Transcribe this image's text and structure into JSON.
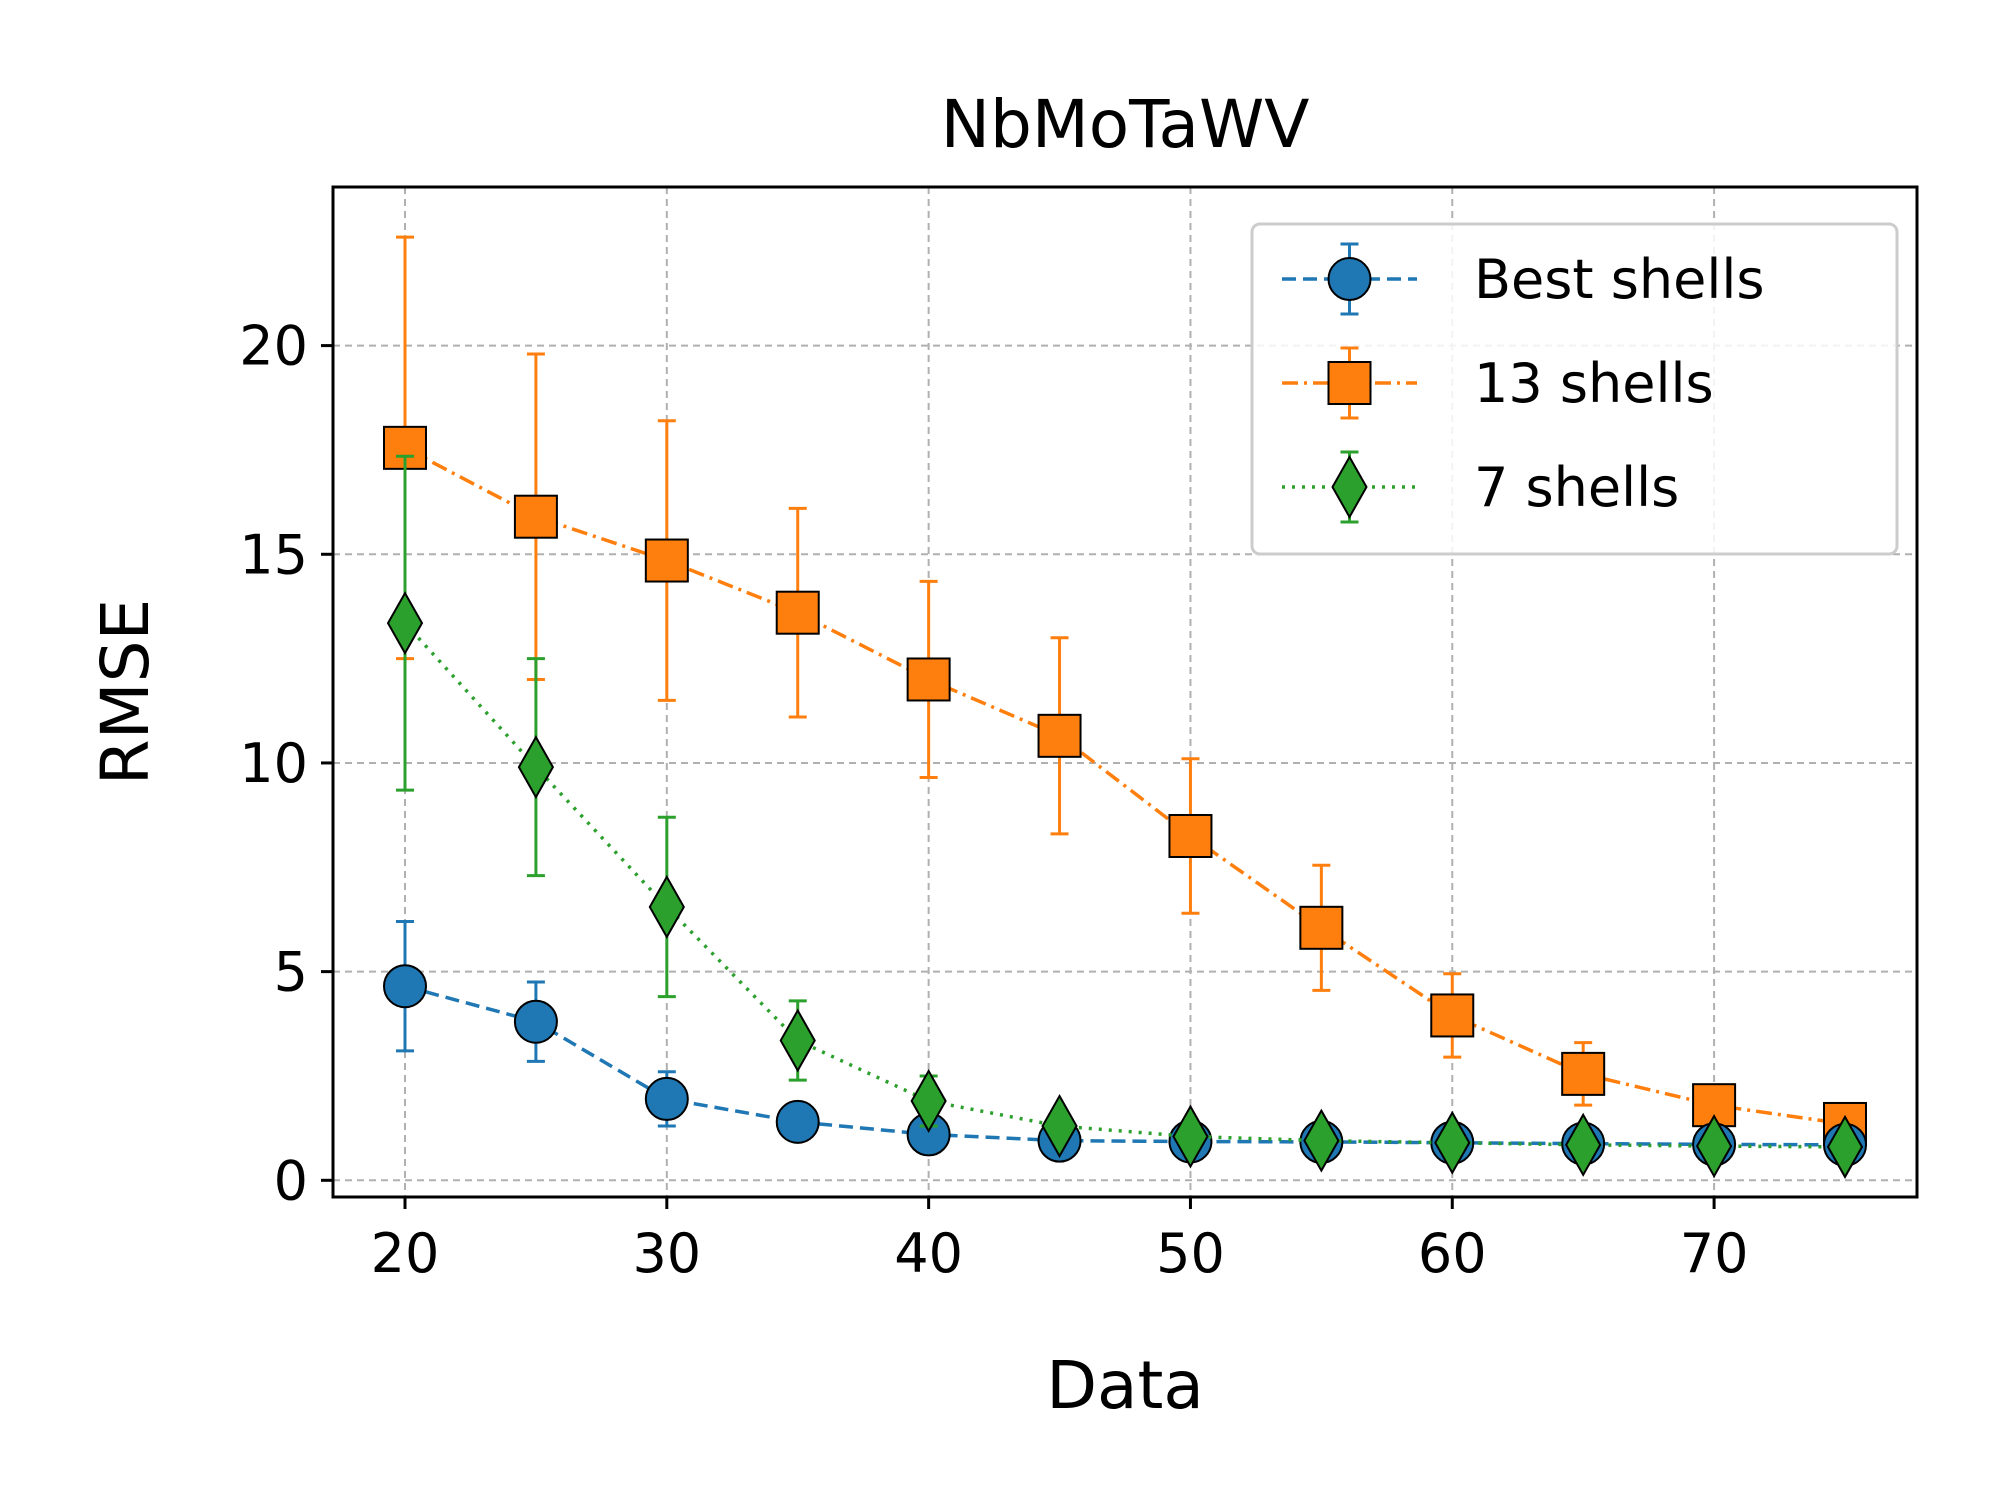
{
  "chart_data": {
    "type": "line",
    "title": "NbMoTaWV",
    "xlabel": "Data",
    "ylabel": "RMSE",
    "xlim": [
      17.25,
      77.75
    ],
    "ylim": [
      -0.4,
      23.8
    ],
    "xticks": [
      20,
      30,
      40,
      50,
      60,
      70
    ],
    "yticks": [
      0,
      5,
      10,
      15,
      20
    ],
    "grid": true,
    "legend_position": "top-right",
    "x": [
      20,
      25,
      30,
      35,
      40,
      45,
      50,
      55,
      60,
      65,
      70,
      75
    ],
    "series": [
      {
        "name": "Best shells",
        "color": "#1f77b4",
        "marker": "circle",
        "linestyle": "dashed",
        "values": [
          4.65,
          3.8,
          1.95,
          1.4,
          1.1,
          0.95,
          0.93,
          0.92,
          0.9,
          0.88,
          0.86,
          0.85
        ],
        "errors": [
          1.55,
          0.95,
          0.65,
          0.2,
          0.15,
          0.1,
          0.08,
          0.07,
          0.07,
          0.06,
          0.06,
          0.05
        ]
      },
      {
        "name": "13 shells",
        "color": "#ff7f0e",
        "marker": "square",
        "linestyle": "dashdot",
        "values": [
          17.55,
          15.9,
          14.85,
          13.6,
          12.0,
          10.65,
          8.25,
          6.05,
          3.95,
          2.55,
          1.8,
          1.35
        ],
        "errors": [
          5.05,
          3.9,
          3.35,
          2.5,
          2.35,
          2.35,
          1.85,
          1.5,
          1.0,
          0.75,
          0.3,
          0.15
        ]
      },
      {
        "name": "7 shells",
        "color": "#2ca02c",
        "marker": "diamond",
        "linestyle": "dotted",
        "values": [
          13.35,
          9.9,
          6.55,
          3.35,
          1.9,
          1.3,
          1.05,
          0.95,
          0.9,
          0.85,
          0.82,
          0.8
        ],
        "errors": [
          4.0,
          2.6,
          2.15,
          0.95,
          0.6,
          0.25,
          0.15,
          0.1,
          0.08,
          0.07,
          0.06,
          0.05
        ]
      }
    ]
  }
}
